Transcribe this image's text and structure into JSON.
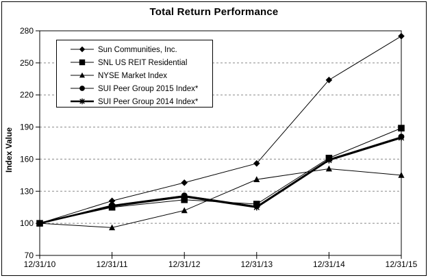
{
  "chart_data": {
    "type": "line",
    "title": "Total Return Performance",
    "ylabel": "Index Value",
    "xlabel": "",
    "x_labels": [
      "12/31/10",
      "12/31/11",
      "12/31/12",
      "12/31/13",
      "12/31/14",
      "12/31/15"
    ],
    "y_ticks": [
      70,
      100,
      130,
      160,
      190,
      220,
      250,
      280
    ],
    "ylim": [
      70,
      280
    ],
    "grid": "horizontal-dashed",
    "legend_position": "upper-left-inside",
    "series": [
      {
        "name": "Sun Communities, Inc.",
        "marker": "diamond",
        "line_width": 1,
        "values": [
          100,
          121,
          138,
          156,
          234,
          275
        ]
      },
      {
        "name": "SNL US REIT Residential",
        "marker": "square",
        "line_width": 1,
        "values": [
          100,
          115,
          122,
          118,
          161,
          189
        ]
      },
      {
        "name": "NYSE Market Index",
        "marker": "triangle",
        "line_width": 1,
        "values": [
          100,
          96,
          112,
          141,
          151,
          145
        ]
      },
      {
        "name": "SUI Peer Group 2015 Index*",
        "marker": "circle",
        "line_width": 1,
        "values": [
          100,
          117,
          126,
          116,
          160,
          181
        ]
      },
      {
        "name": "SUI Peer Group 2014 Index*",
        "marker": "asterisk",
        "line_width": 2.5,
        "values": [
          100,
          116,
          125,
          115,
          159,
          180
        ]
      }
    ],
    "colors": {
      "series": "#000000",
      "grid": "#888888",
      "background": "#ffffff",
      "border": "#000000"
    }
  }
}
